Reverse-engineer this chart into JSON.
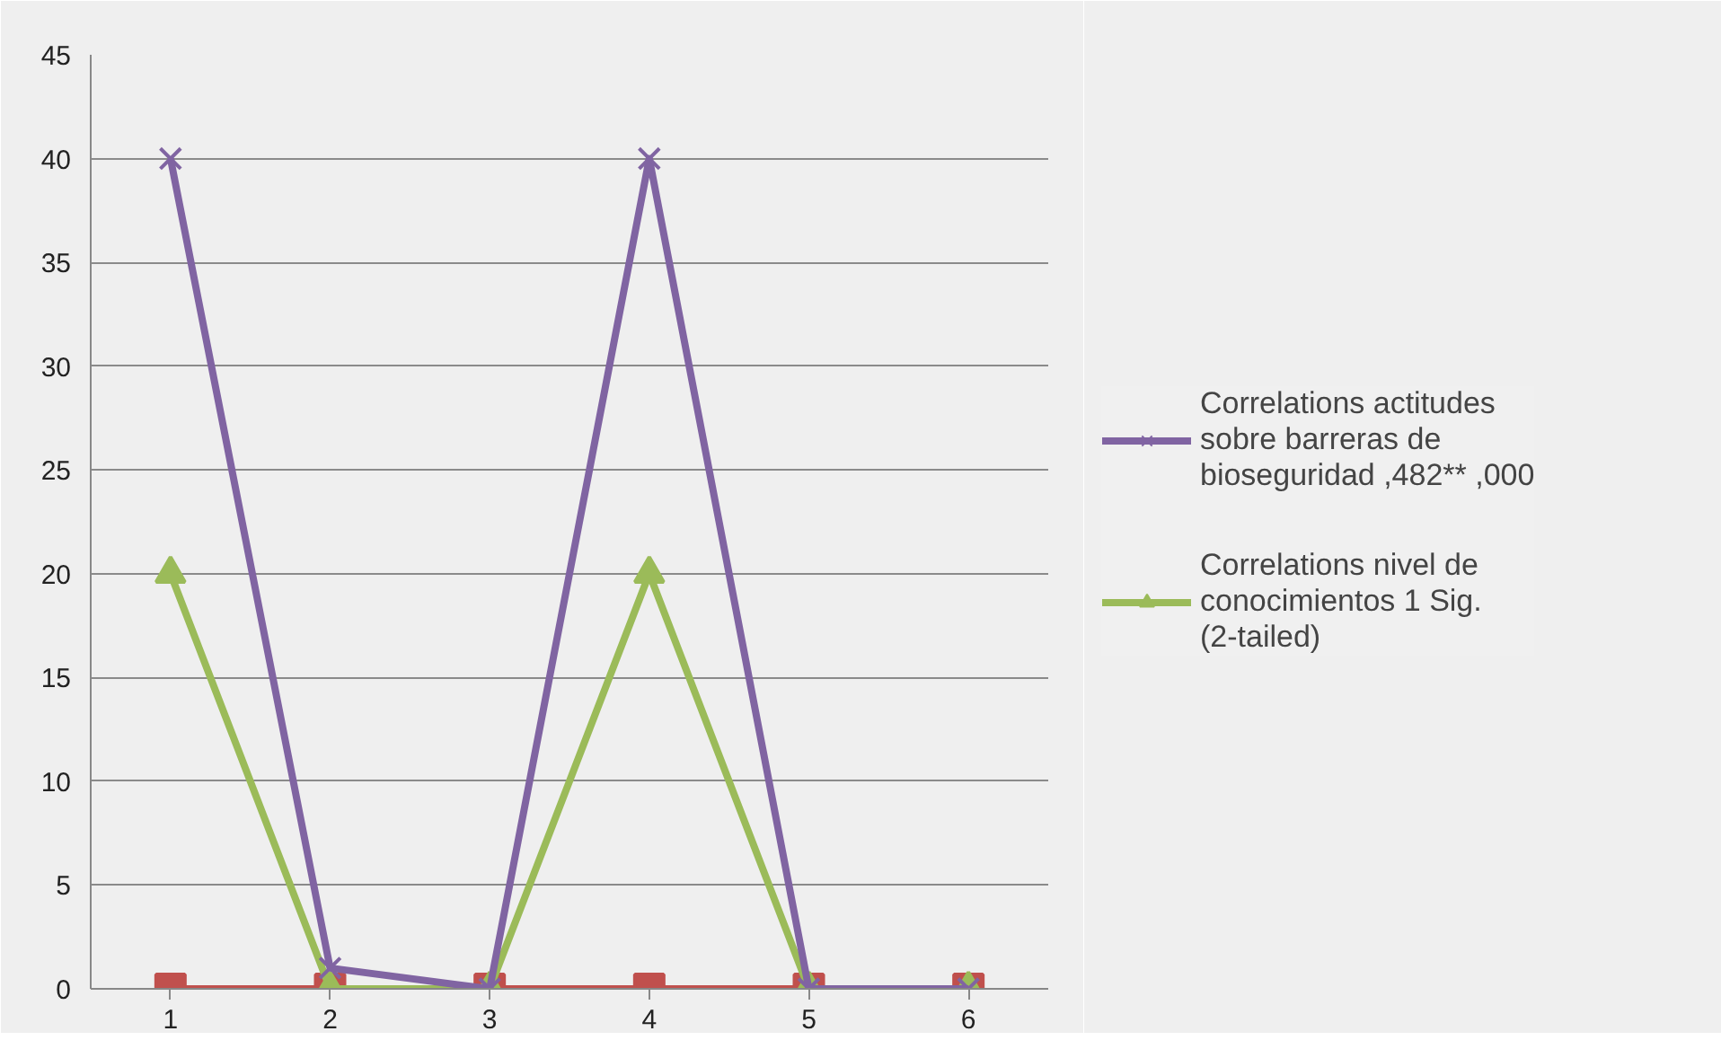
{
  "chart_data": {
    "type": "line",
    "categories": [
      "1",
      "2",
      "3",
      "4",
      "5",
      "6"
    ],
    "ylim": [
      0,
      45
    ],
    "yticks": [
      0,
      5,
      10,
      15,
      20,
      25,
      30,
      35,
      40,
      45
    ],
    "grid": "y",
    "legend": "right",
    "series": [
      {
        "name": "Correlations actitudes sobre barreras de bioseguridad ,482** ,000",
        "color": "#8064a2",
        "marker": "cross",
        "values": [
          40,
          1,
          0,
          40,
          0,
          0
        ]
      },
      {
        "name": "Correlations nivel de conocimientos 1 Sig. (2-tailed)",
        "color": "#9bbb59",
        "marker": "triangle",
        "values": [
          20,
          0,
          0,
          20,
          0,
          0
        ]
      },
      {
        "color": "#c0504d",
        "marker": "square",
        "values": [
          0,
          0,
          0,
          0,
          0,
          0
        ]
      }
    ]
  }
}
